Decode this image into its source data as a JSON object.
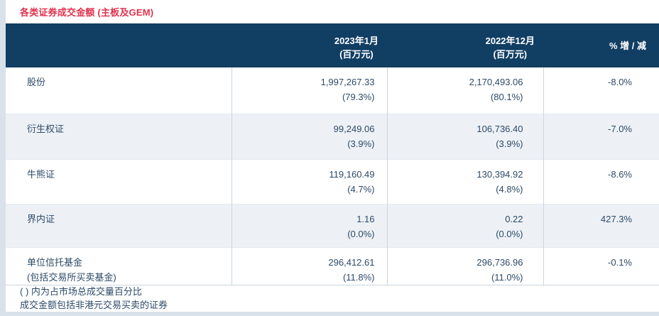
{
  "page": {
    "title": "各类证券成交金额 (主板及GEM)"
  },
  "colors": {
    "title_red": "#e0314d",
    "header_bg": "#113e63",
    "header_text": "#ffffff",
    "row_alt_bg": "#edf1f6",
    "body_text": "#2c4a68",
    "column_divider": "#c9d6e0",
    "side_strip": "#d9e1ea"
  },
  "table": {
    "columns": {
      "period1": {
        "line1": "2023年1月",
        "line2": "(百万元)"
      },
      "period2": {
        "line1": "2022年12月",
        "line2": "(百万元)"
      },
      "change": "% 增 / 减"
    },
    "rows": [
      {
        "label1": "股份",
        "label2": "",
        "period1_value": "1,997,267.33",
        "period1_pct": "(79.3%)",
        "period2_value": "2,170,493.06",
        "period2_pct": "(80.1%)",
        "change": "-8.0%"
      },
      {
        "label1": "衍生权证",
        "label2": "",
        "period1_value": "99,249.06",
        "period1_pct": "(3.9%)",
        "period2_value": "106,736.40",
        "period2_pct": "(3.9%)",
        "change": "-7.0%"
      },
      {
        "label1": "牛熊证",
        "label2": "",
        "period1_value": "119,160.49",
        "period1_pct": "(4.7%)",
        "period2_value": "130,394.92",
        "period2_pct": "(4.8%)",
        "change": "-8.6%"
      },
      {
        "label1": "界内证",
        "label2": "",
        "period1_value": "1.16",
        "period1_pct": "(0.0%)",
        "period2_value": "0.22",
        "period2_pct": "(0.0%)",
        "change": "427.3%"
      },
      {
        "label1": "单位信托基金",
        "label2": "(包括交易所买卖基金)",
        "period1_value": "296,412.61",
        "period1_pct": "(11.8%)",
        "period2_value": "296,736.96",
        "period2_pct": "(11.0%)",
        "change": "-0.1%"
      }
    ],
    "notes": [
      "( ) 内为占市场总成交量百分比",
      "成交金额包括非港元交易买卖的证券"
    ]
  }
}
